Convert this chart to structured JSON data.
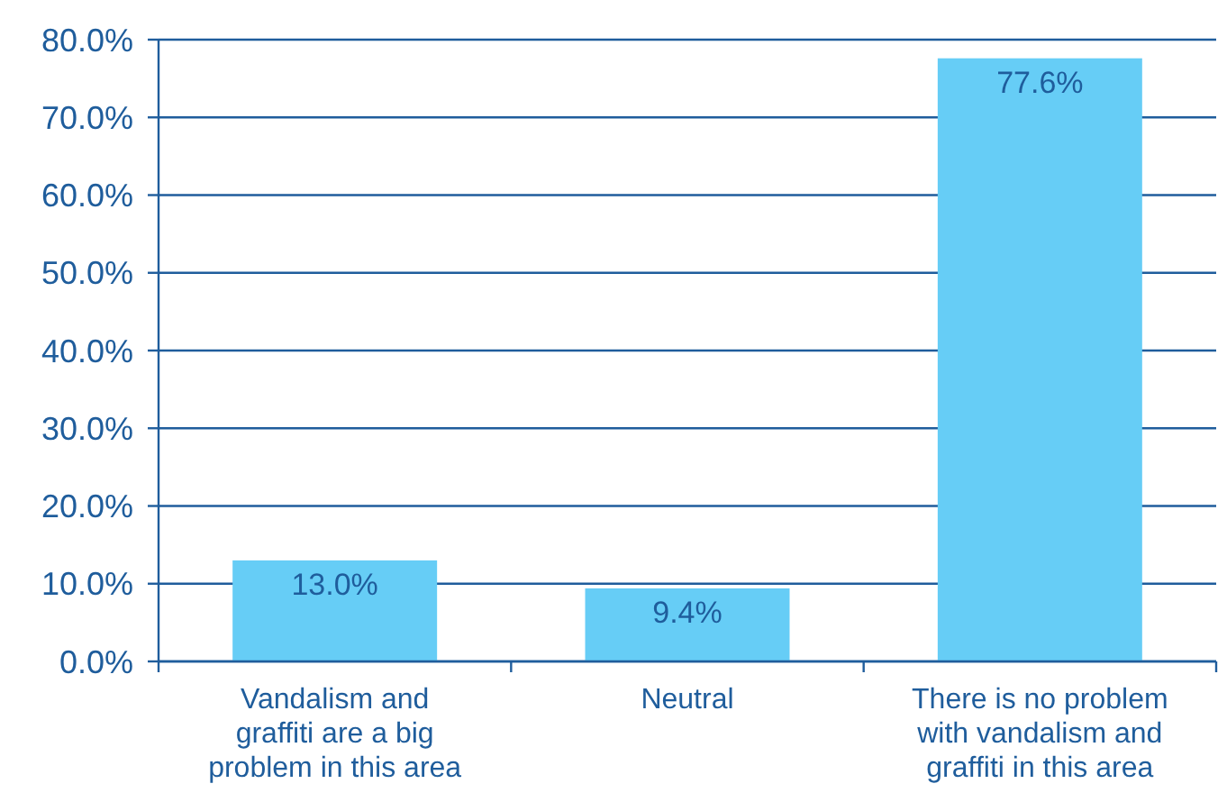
{
  "chart_data": {
    "type": "bar",
    "categories": [
      "Vandalism and graffiti are a big problem in this area",
      "Neutral",
      "There is no problem with vandalism and graffiti in this area"
    ],
    "values": [
      13.0,
      9.4,
      77.6
    ],
    "value_labels": [
      "13.0%",
      "9.4%",
      "77.6%"
    ],
    "color": "#66cdf6",
    "ylim": [
      0,
      80
    ],
    "yticks": [
      {
        "value": 0,
        "label": "0.0%"
      },
      {
        "value": 10,
        "label": "10.0%"
      },
      {
        "value": 20,
        "label": "20.0%"
      },
      {
        "value": 30,
        "label": "30.0%"
      },
      {
        "value": 40,
        "label": "40.0%"
      },
      {
        "value": 50,
        "label": "50.0%"
      },
      {
        "value": 60,
        "label": "60.0%"
      },
      {
        "value": 70,
        "label": "70.0%"
      },
      {
        "value": 80,
        "label": "80.0%"
      }
    ],
    "grid": "y"
  }
}
